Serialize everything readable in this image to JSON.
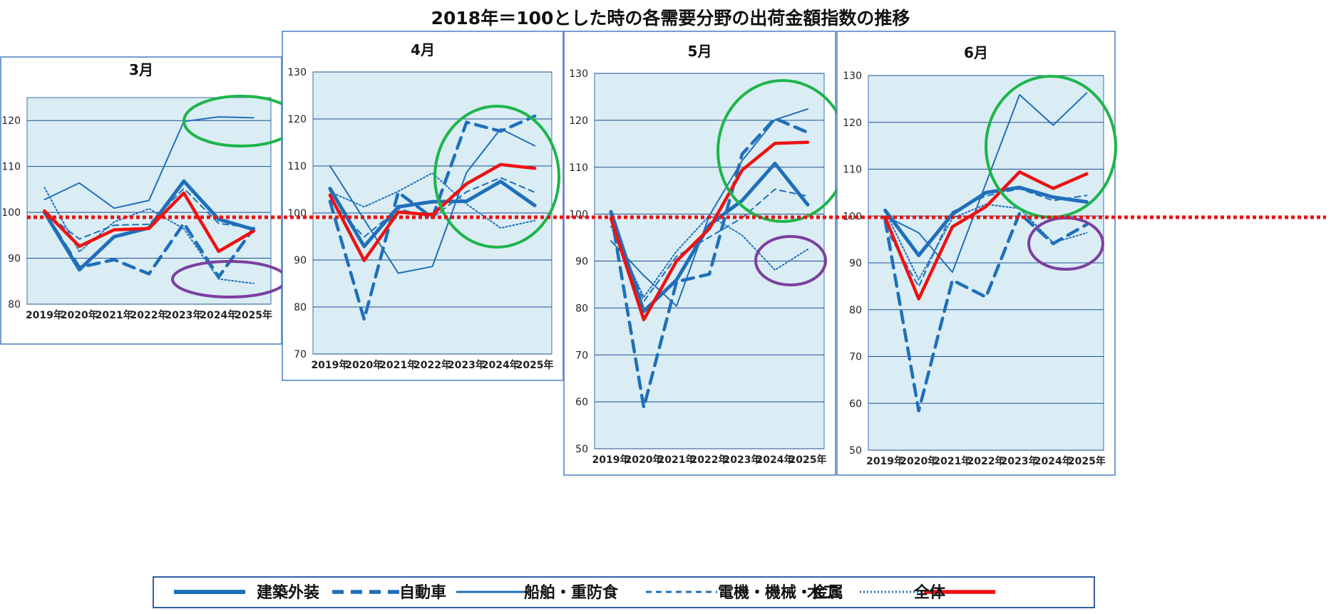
{
  "title": "2018年＝100とした時の各需要分野の出荷金額指数の推移",
  "colors": {
    "blue": "#1f6fba",
    "red": "#ee1111",
    "plot_bg": "#daedf4",
    "grid": "#1f4e8f",
    "green_circle": "#1db54a",
    "purple_circle": "#7b3fa0"
  },
  "legend": [
    {
      "name": "建築外装",
      "style": "thick"
    },
    {
      "name": "自動車",
      "style": "dash-thick"
    },
    {
      "name": "船舶・重防食",
      "style": "thin"
    },
    {
      "name": "電機・機械・金属",
      "style": "dash-thin"
    },
    {
      "name": "木工",
      "style": "dotted"
    },
    {
      "name": "全体",
      "style": "red"
    }
  ],
  "reference_line": {
    "value": 99,
    "color": "#ee1111",
    "style": "dotted"
  },
  "chart_data": [
    {
      "type": "line",
      "title": "3月",
      "categories": [
        "2019年",
        "2020年",
        "2021年",
        "2022年",
        "2023年",
        "2024年",
        "2025年"
      ],
      "ylim": [
        80,
        125
      ],
      "yticks": [
        80,
        90,
        100,
        110,
        120
      ],
      "series": [
        {
          "name": "建築外装",
          "values": [
            100,
            87.5,
            94.7,
            96.6,
            106.8,
            98.5,
            96.3
          ]
        },
        {
          "name": "自動車",
          "values": [
            100,
            88,
            89.7,
            86.6,
            97.6,
            85.9,
            96.5
          ]
        },
        {
          "name": "船舶・重防食",
          "values": [
            102.8,
            106.4,
            100.9,
            102.6,
            119.8,
            120.8,
            120.6
          ]
        },
        {
          "name": "電機・機械・金属",
          "values": [
            100,
            94.2,
            97.2,
            97.4,
            105.2,
            97.6,
            96.6
          ]
        },
        {
          "name": "木工",
          "values": [
            105.4,
            91.4,
            97.9,
            100.8,
            96.4,
            85.5,
            84.5
          ]
        },
        {
          "name": "全体",
          "values": [
            100.3,
            92.6,
            96.2,
            96.5,
            104.2,
            91.5,
            95.9
          ]
        }
      ]
    },
    {
      "type": "line",
      "title": "4月",
      "categories": [
        "2019年",
        "2020年",
        "2021年",
        "2022年",
        "2023年",
        "2024年",
        "2025年"
      ],
      "ylim": [
        70,
        130
      ],
      "yticks": [
        70,
        80,
        90,
        100,
        110,
        120,
        130
      ],
      "series": [
        {
          "name": "建築外装",
          "values": [
            105.2,
            92.9,
            101.3,
            102.4,
            102.5,
            106.7,
            101.6
          ]
        },
        {
          "name": "自動車",
          "values": [
            102.5,
            77.4,
            104.4,
            99,
            119.3,
            117.4,
            120.6
          ]
        },
        {
          "name": "船舶・重防食",
          "values": [
            110,
            98.6,
            87.2,
            88.6,
            108.6,
            117.9,
            114.3
          ]
        },
        {
          "name": "電機・機械・金属",
          "values": [
            102.6,
            94.9,
            100.9,
            99,
            104.5,
            107.5,
            104.4
          ]
        },
        {
          "name": "木工",
          "values": [
            104.5,
            101.3,
            104.6,
            108.5,
            101.9,
            96.8,
            98.4
          ]
        },
        {
          "name": "全体",
          "values": [
            103.8,
            89.9,
            100.2,
            99.6,
            106.2,
            110.3,
            109.5
          ]
        }
      ]
    },
    {
      "type": "line",
      "title": "5月",
      "categories": [
        "2019年",
        "2020年",
        "2021年",
        "2022年",
        "2023年",
        "2024年",
        "2025年"
      ],
      "ylim": [
        50,
        130
      ],
      "yticks": [
        50,
        60,
        70,
        80,
        90,
        100,
        110,
        120,
        130
      ],
      "series": [
        {
          "name": "建築外装",
          "values": [
            100.5,
            79.3,
            86,
            97.7,
            102.9,
            110.8,
            102
          ]
        },
        {
          "name": "自動車",
          "values": [
            100.3,
            58.8,
            85.6,
            87.2,
            112.8,
            120.4,
            117.4
          ]
        },
        {
          "name": "船舶・重防食",
          "values": [
            94.3,
            86.9,
            80.4,
            99.7,
            111.4,
            120.1,
            122.4
          ]
        },
        {
          "name": "電機・機械・金属",
          "values": [
            99,
            81.4,
            91,
            95.1,
            99.2,
            105.3,
            103.8
          ]
        },
        {
          "name": "木工",
          "values": [
            97.4,
            82.3,
            92.1,
            99.7,
            95.5,
            88.1,
            92.5
          ]
        },
        {
          "name": "全体",
          "values": [
            99.1,
            77.5,
            90,
            96.9,
            109.4,
            115.1,
            115.3
          ]
        }
      ]
    },
    {
      "type": "line",
      "title": "6月",
      "categories": [
        "2019年",
        "2020年",
        "2021年",
        "2022年",
        "2023年",
        "2024年",
        "2025年"
      ],
      "ylim": [
        50,
        130
      ],
      "yticks": [
        50,
        60,
        70,
        80,
        90,
        100,
        110,
        120,
        130
      ],
      "series": [
        {
          "name": "建築外装",
          "values": [
            101.2,
            91.6,
            100.4,
            105,
            106.1,
            104,
            103
          ]
        },
        {
          "name": "自動車",
          "values": [
            99.1,
            58.4,
            86.3,
            82.7,
            100.6,
            94.1,
            98.2
          ]
        },
        {
          "name": "船舶・重防食",
          "values": [
            100,
            96.4,
            88,
            107,
            125.9,
            119.4,
            126.3
          ]
        },
        {
          "name": "電機・機械・金属",
          "values": [
            97.6,
            84.9,
            100.9,
            104.3,
            105.8,
            103.3,
            104.4
          ]
        },
        {
          "name": "木工",
          "values": [
            101,
            86.4,
            99.5,
            102.5,
            101.6,
            94.3,
            96.4
          ]
        },
        {
          "name": "全体",
          "values": [
            99.7,
            82.3,
            97.7,
            102,
            109.4,
            105.9,
            109
          ]
        }
      ]
    }
  ]
}
